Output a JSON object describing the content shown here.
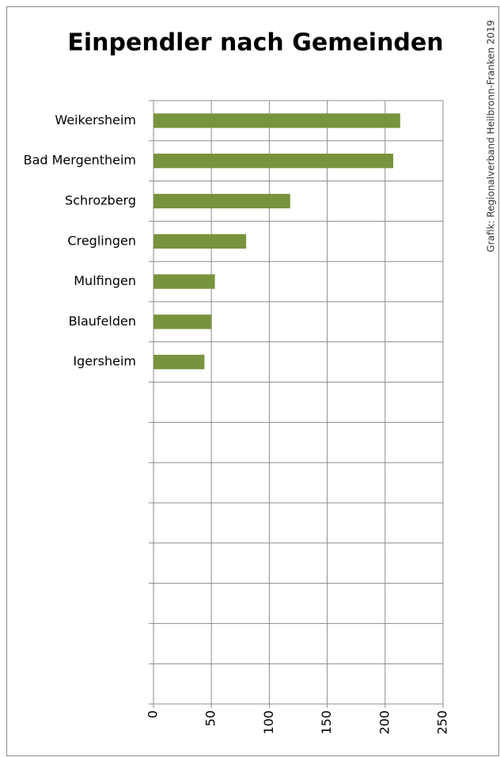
{
  "chart_data": {
    "type": "bar",
    "orientation": "horizontal",
    "title": "Einpendler nach Gemeinden",
    "credit": "Grafik: Regionalverband Heilbronn-Franken 2019",
    "categories": [
      "Weikersheim",
      "Bad Mergentheim",
      "Schrozberg",
      "Creglingen",
      "Mulfingen",
      "Blaufelden",
      "Igersheim",
      null,
      null,
      null,
      null,
      null,
      null,
      null,
      null
    ],
    "values": [
      213,
      207,
      118,
      80,
      53,
      50,
      44,
      null,
      null,
      null,
      null,
      null,
      null,
      null,
      null
    ],
    "color": "#77933c",
    "xlim": [
      0,
      250
    ],
    "xticks": [
      0,
      50,
      100,
      150,
      200,
      250
    ],
    "grid": true
  }
}
